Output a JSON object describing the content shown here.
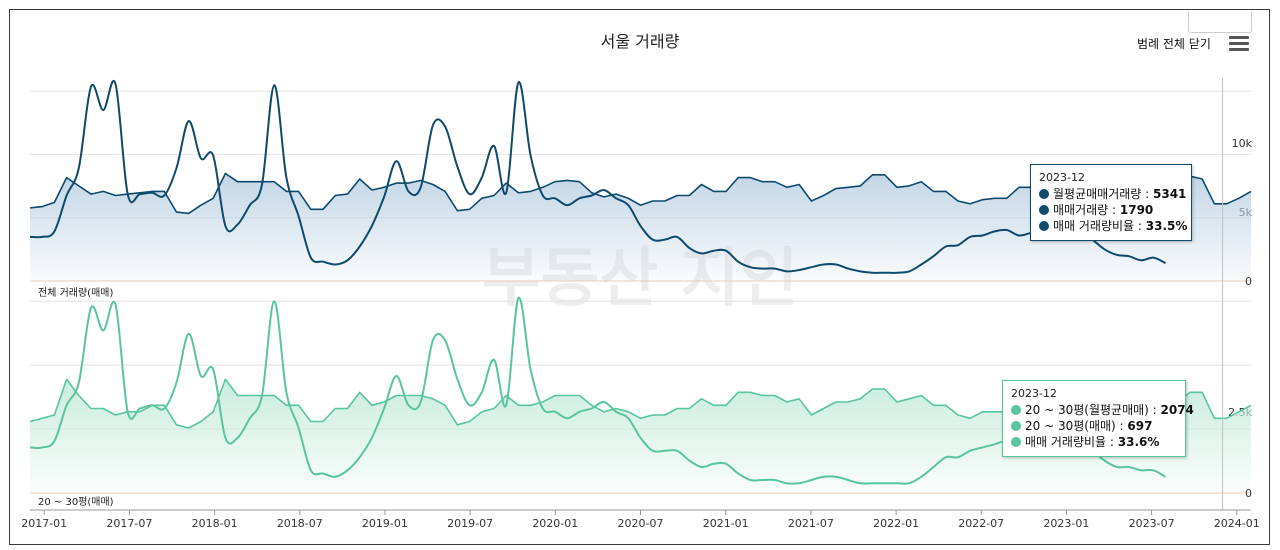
{
  "title": "서울 거래량",
  "legend_toggle_label": "범례 전체 닫기",
  "watermark": "부동산 지인",
  "colors": {
    "top_line": "#0d4a6e",
    "top_fill": "#bfd3e4",
    "bottom_line": "#57c69c",
    "bottom_fill": "#c6ebdb",
    "grid": "#e3e3e3",
    "crosshair": "#c0c0c0"
  },
  "chart_data": [
    {
      "type": "area",
      "panel_label": "전체 거래량(매매)",
      "x_ticks": [
        "2017-01",
        "2017-07",
        "2018-01",
        "2018-07",
        "2019-01",
        "2019-07",
        "2020-01",
        "2020-07",
        "2021-01",
        "2021-07",
        "2022-01",
        "2022-07",
        "2023-01",
        "2023-07",
        "2024-01"
      ],
      "x_range": [
        "2016-12",
        "2024-02"
      ],
      "y_ticks": [
        "0",
        "5k",
        "10k"
      ],
      "ylim": [
        0,
        14000
      ],
      "series": [
        {
          "name": "월평균매매거래량",
          "style": "area",
          "values": [
            5300,
            5400,
            5700,
            7500,
            6900,
            6300,
            6500,
            6200,
            6300,
            6400,
            6500,
            6500,
            5000,
            4900,
            5500,
            6000,
            7800,
            7200,
            7200,
            7200,
            7200,
            6500,
            6500,
            5200,
            5200,
            6200,
            6300,
            7400,
            6600,
            6800,
            7100,
            7100,
            7300,
            7000,
            6500,
            5100,
            5200,
            6000,
            6200,
            7100,
            6400,
            6500,
            6800,
            7200,
            7300,
            7200,
            6400,
            6100,
            6300,
            6000,
            5500,
            5800,
            5800,
            6200,
            6200,
            7000,
            6500,
            6500,
            7500,
            7500,
            7200,
            7200,
            6800,
            7000,
            5800,
            6200,
            6700,
            6800,
            6900,
            7700,
            7700,
            6800,
            6900,
            7200,
            6500,
            6500,
            5800,
            5600,
            5900,
            6000,
            6000,
            6800,
            6800,
            7700,
            7600,
            6300,
            6500,
            6400,
            6000,
            5500,
            4600,
            5400,
            5300,
            5700,
            6800,
            7600,
            7400,
            5600,
            5600,
            6000,
            6500
          ]
        },
        {
          "name": "매매거래량",
          "style": "line",
          "values": [
            3200,
            3200,
            3600,
            6200,
            8200,
            14100,
            12400,
            14300,
            6300,
            6300,
            6400,
            6200,
            8200,
            11600,
            8900,
            9100,
            4000,
            4100,
            5500,
            7000,
            14200,
            7500,
            4700,
            1700,
            1400,
            1200,
            1500,
            2500,
            4000,
            6100,
            8700,
            6500,
            6800,
            11300,
            11200,
            8300,
            6300,
            7500,
            9800,
            6400,
            14400,
            9100,
            6200,
            6000,
            5500,
            6000,
            6200,
            6600,
            6000,
            5500,
            4000,
            3000,
            3000,
            3200,
            2400,
            2000,
            2200,
            2200,
            1400,
            1000,
            900,
            900,
            700,
            800,
            1000,
            1200,
            1200,
            900,
            700,
            600,
            600,
            600,
            700,
            1200,
            1800,
            2500,
            2600,
            3200,
            3300,
            3600,
            3700,
            3300,
            3500,
            3700,
            3900,
            3900,
            3600,
            3000,
            2300,
            1900,
            1800,
            1500,
            1700,
            1300
          ]
        }
      ],
      "tooltip": {
        "date": "2023-12",
        "rows": [
          [
            "월평균매매거래량",
            "5341"
          ],
          [
            "매매거래량",
            "1790"
          ],
          [
            "매매 거래량비율",
            "33.5%"
          ]
        ]
      }
    },
    {
      "type": "area",
      "panel_label": "20 ~ 30평(매매)",
      "x_ticks": [
        "2017-01",
        "2017-07",
        "2018-01",
        "2018-07",
        "2019-01",
        "2019-07",
        "2020-01",
        "2020-07",
        "2021-01",
        "2021-07",
        "2022-01",
        "2022-07",
        "2023-01",
        "2023-07",
        "2024-01"
      ],
      "x_range": [
        "2016-12",
        "2024-02"
      ],
      "y_ticks": [
        "0",
        "2.5k"
      ],
      "ylim": [
        0,
        6000
      ],
      "series": [
        {
          "name": "20 ~ 30평(월평균매매)",
          "style": "area",
          "values": [
            2200,
            2300,
            2400,
            3500,
            3000,
            2600,
            2600,
            2400,
            2500,
            2500,
            2700,
            2700,
            2100,
            2000,
            2200,
            2500,
            3500,
            3000,
            3000,
            3000,
            3000,
            2700,
            2700,
            2200,
            2200,
            2600,
            2600,
            3100,
            2700,
            2800,
            3000,
            3000,
            3000,
            2900,
            2700,
            2100,
            2200,
            2500,
            2600,
            3000,
            2700,
            2700,
            2800,
            3000,
            3000,
            3000,
            2700,
            2500,
            2600,
            2500,
            2300,
            2400,
            2400,
            2600,
            2600,
            2900,
            2700,
            2700,
            3100,
            3100,
            3000,
            3000,
            2800,
            2900,
            2400,
            2600,
            2800,
            2800,
            2900,
            3200,
            3200,
            2800,
            2900,
            3000,
            2700,
            2700,
            2400,
            2300,
            2500,
            2500,
            2500,
            2800,
            2800,
            3200,
            3200,
            2600,
            2700,
            2700,
            2500,
            2300,
            1900,
            2200,
            2300,
            2400,
            2800,
            3100,
            3100,
            2300,
            2300,
            2500,
            2700
          ]
        },
        {
          "name": "20 ~ 30평(매매)",
          "style": "line",
          "values": [
            1400,
            1400,
            1600,
            2700,
            3400,
            5700,
            5000,
            5800,
            2500,
            2600,
            2700,
            2600,
            3400,
            4900,
            3600,
            3800,
            1700,
            1700,
            2300,
            3000,
            5900,
            3100,
            2000,
            700,
            600,
            500,
            700,
            1100,
            1700,
            2600,
            3600,
            2700,
            2800,
            4700,
            4700,
            3500,
            2700,
            3100,
            4100,
            2700,
            6000,
            3800,
            2600,
            2500,
            2300,
            2500,
            2600,
            2800,
            2500,
            2300,
            1700,
            1300,
            1300,
            1300,
            1000,
            800,
            900,
            900,
            600,
            400,
            400,
            400,
            300,
            300,
            400,
            500,
            500,
            400,
            300,
            300,
            300,
            300,
            300,
            500,
            800,
            1100,
            1100,
            1300,
            1400,
            1500,
            1600,
            1400,
            1500,
            1600,
            1700,
            1700,
            1500,
            1300,
            1000,
            800,
            800,
            700,
            700,
            500
          ]
        }
      ],
      "tooltip": {
        "date": "2023-12",
        "rows": [
          [
            "20 ~ 30평(월평균매매)",
            "2074"
          ],
          [
            "20 ~ 30평(매매)",
            "697"
          ],
          [
            "매매 거래량비율",
            "33.6%"
          ]
        ]
      }
    }
  ]
}
